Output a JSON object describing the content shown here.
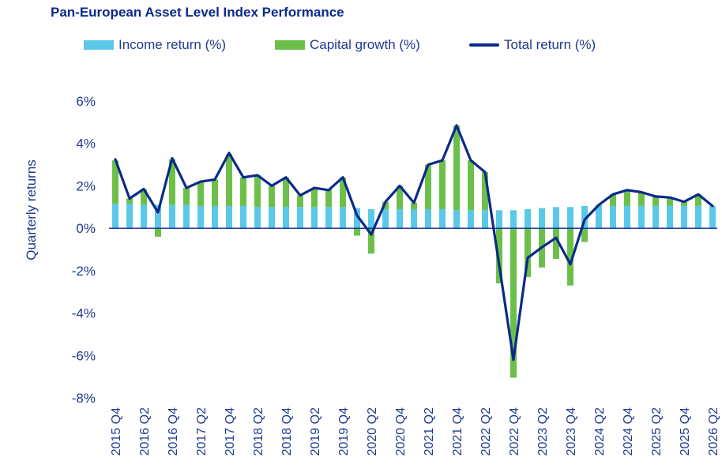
{
  "title": "Pan-European Asset Level Index Performance",
  "legend": {
    "income": "Income return (%)",
    "capital": "Capital growth (%)",
    "total": "Total return (%)"
  },
  "colors": {
    "title": "#0b2a8a",
    "text": "#1f3a8f",
    "income": "#5bc8ea",
    "capital": "#6cc04a",
    "total": "#0b2a8a",
    "zero_line": "#0b2a8a"
  },
  "chart_data": {
    "type": "bar",
    "stacked": true,
    "ylabel": "Quarterly returns",
    "ylim": [
      -8,
      6
    ],
    "yticks": [
      "6%",
      "4%",
      "2%",
      "0%",
      "-2%",
      "-4%",
      "-6%",
      "-8%"
    ],
    "ytick_values": [
      6,
      4,
      2,
      0,
      -2,
      -4,
      -6,
      -8
    ],
    "xtick_labels": [
      "2015 Q4",
      "2016 Q2",
      "2016 Q4",
      "2017 Q2",
      "2017 Q4",
      "2018 Q2",
      "2018 Q4",
      "2019 Q2",
      "2019 Q4",
      "2020 Q2",
      "2020 Q4",
      "2021 Q2",
      "2021 Q4",
      "2022 Q2",
      "2022 Q4",
      "2023 Q2",
      "2023 Q4",
      "2024 Q2",
      "2024 Q4",
      "2025 Q2",
      "2025 Q4",
      "2026 Q2"
    ],
    "categories": [
      "2015 Q4",
      "2016 Q1",
      "2016 Q2",
      "2016 Q3",
      "2016 Q4",
      "2017 Q1",
      "2017 Q2",
      "2017 Q3",
      "2017 Q4",
      "2018 Q1",
      "2018 Q2",
      "2018 Q3",
      "2018 Q4",
      "2019 Q1",
      "2019 Q2",
      "2019 Q3",
      "2019 Q4",
      "2020 Q1",
      "2020 Q2",
      "2020 Q3",
      "2020 Q4",
      "2021 Q1",
      "2021 Q2",
      "2021 Q3",
      "2021 Q4",
      "2022 Q1",
      "2022 Q2",
      "2022 Q3",
      "2022 Q4",
      "2023 Q1",
      "2023 Q2",
      "2023 Q3",
      "2023 Q4",
      "2024 Q1",
      "2024 Q2",
      "2024 Q3",
      "2024 Q4",
      "2025 Q1",
      "2025 Q2",
      "2025 Q3",
      "2025 Q4",
      "2026 Q1",
      "2026 Q2"
    ],
    "series": [
      {
        "name": "Income return (%)",
        "kind": "bar",
        "values": [
          1.15,
          1.15,
          1.1,
          1.1,
          1.1,
          1.1,
          1.05,
          1.05,
          1.05,
          1.05,
          1.0,
          1.0,
          1.0,
          1.0,
          1.0,
          1.0,
          1.0,
          0.95,
          0.9,
          0.9,
          0.9,
          0.9,
          0.9,
          0.9,
          0.85,
          0.85,
          0.85,
          0.85,
          0.85,
          0.9,
          0.95,
          1.0,
          1.0,
          1.05,
          1.05,
          1.05,
          1.05,
          1.05,
          1.05,
          1.05,
          1.05,
          1.05,
          1.05
        ]
      },
      {
        "name": "Capital growth (%)",
        "kind": "bar",
        "values": [
          2.05,
          0.25,
          0.75,
          -0.4,
          2.15,
          0.8,
          1.15,
          1.25,
          2.45,
          1.35,
          1.5,
          1.0,
          1.4,
          0.55,
          0.9,
          0.85,
          1.4,
          -0.35,
          -1.2,
          0.35,
          1.1,
          0.3,
          2.1,
          2.3,
          4.0,
          2.35,
          1.8,
          -2.6,
          -7.05,
          -2.3,
          -1.85,
          -1.45,
          -2.7,
          -0.65,
          0.05,
          0.55,
          0.75,
          0.65,
          0.45,
          0.4,
          0.2,
          0.55,
          0.0
        ]
      },
      {
        "name": "Total return (%)",
        "kind": "line",
        "values": [
          3.25,
          1.4,
          1.85,
          0.75,
          3.3,
          1.9,
          2.2,
          2.3,
          3.55,
          2.4,
          2.5,
          2.0,
          2.4,
          1.55,
          1.9,
          1.8,
          2.4,
          0.6,
          -0.3,
          1.25,
          2.0,
          1.2,
          3.0,
          3.2,
          4.85,
          3.2,
          2.65,
          -1.75,
          -6.2,
          -1.4,
          -0.9,
          -0.45,
          -1.7,
          0.4,
          1.1,
          1.6,
          1.8,
          1.7,
          1.5,
          1.45,
          1.25,
          1.6,
          1.05
        ]
      }
    ]
  }
}
